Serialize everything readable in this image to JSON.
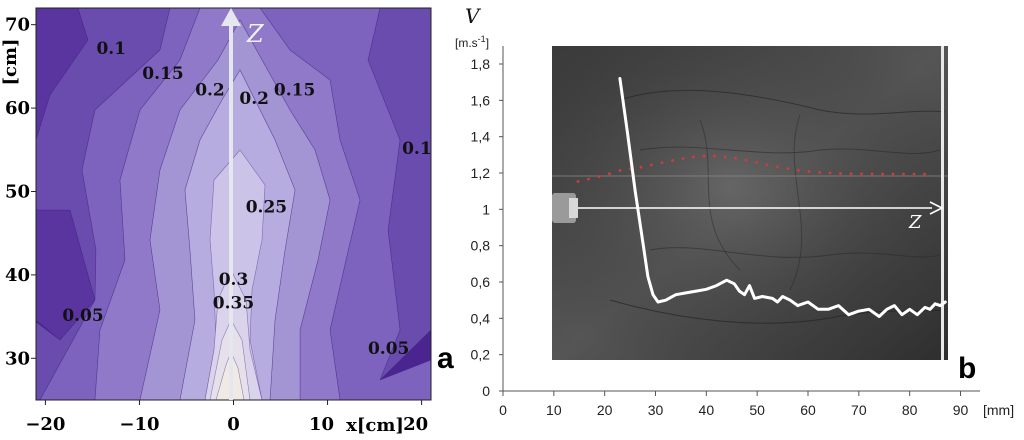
{
  "chart_data": [
    {
      "type": "contour",
      "panel_label": "a",
      "xlabel": "x[cm]",
      "ylabel": "[cm]",
      "xticks": [
        "−20",
        "−10",
        "0",
        "10",
        "20"
      ],
      "yticks": [
        "30",
        "40",
        "50",
        "60",
        "70"
      ],
      "xlim": [
        -21,
        21
      ],
      "ylim": [
        25,
        72
      ],
      "axis_arrow_label": "Z",
      "contour_labels": [
        {
          "text": "0.1",
          "x": -13,
          "y": 66.5
        },
        {
          "text": "0.15",
          "x": -7.5,
          "y": 63.5
        },
        {
          "text": "0.2",
          "x": -2.5,
          "y": 61.5
        },
        {
          "text": "0.2",
          "x": 2.2,
          "y": 60.5
        },
        {
          "text": "0.15",
          "x": 6.5,
          "y": 61.5
        },
        {
          "text": "0.1",
          "x": 19.5,
          "y": 54.5
        },
        {
          "text": "0.25",
          "x": 3.5,
          "y": 47.5
        },
        {
          "text": "0.3",
          "x": 0,
          "y": 38.8
        },
        {
          "text": "0.35",
          "x": 0,
          "y": 36
        },
        {
          "text": "0.05",
          "x": -16,
          "y": 34.5
        },
        {
          "text": "0.05",
          "x": 16.5,
          "y": 30.5
        }
      ],
      "colors": {
        "low": "#4a2590",
        "high": "#e9e2dc",
        "arrow": "#e6e6ee"
      }
    },
    {
      "type": "line",
      "panel_label": "b",
      "ylabel": "V",
      "yunit_base": "[m.s",
      "yunit_exp": "-1",
      "yunit_close": "]",
      "xunit": "[mm]",
      "axis_arrow_label": "Z",
      "xlim": [
        0,
        90
      ],
      "ylim": [
        0,
        1.8
      ],
      "xticks": [
        "0",
        "10",
        "20",
        "30",
        "40",
        "50",
        "60",
        "70",
        "80",
        "90"
      ],
      "yticks": [
        "0",
        "0,2",
        "0,4",
        "0,6",
        "0,8",
        "1",
        "1,2",
        "1,4",
        "1,6",
        "1,8"
      ],
      "series": [
        {
          "color": "#ffffff",
          "x": [
            23,
            24.5,
            26,
            27.5,
            28.5,
            29.5,
            30.5,
            32,
            34,
            36,
            38,
            40,
            42,
            44,
            45.5,
            46.5,
            47.5,
            48.5,
            49.5,
            51,
            53,
            54,
            55,
            56.5,
            58,
            60,
            62,
            64,
            66,
            68,
            70,
            72,
            74,
            75.5,
            77,
            78.5,
            80,
            81.5,
            83,
            84,
            85,
            86,
            87
          ],
          "y": [
            1.72,
            1.42,
            1.1,
            0.82,
            0.63,
            0.53,
            0.49,
            0.5,
            0.53,
            0.54,
            0.55,
            0.56,
            0.58,
            0.61,
            0.59,
            0.55,
            0.53,
            0.58,
            0.51,
            0.52,
            0.51,
            0.49,
            0.52,
            0.5,
            0.47,
            0.49,
            0.45,
            0.45,
            0.47,
            0.42,
            0.44,
            0.45,
            0.41,
            0.45,
            0.47,
            0.42,
            0.45,
            0.42,
            0.46,
            0.45,
            0.48,
            0.47,
            0.49
          ]
        }
      ]
    }
  ]
}
